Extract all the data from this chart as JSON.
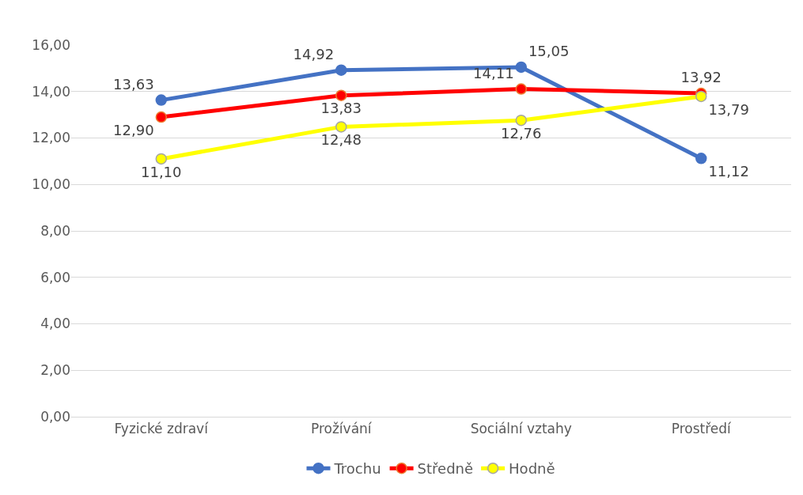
{
  "chart_data": {
    "type": "line",
    "categories": [
      "Fyzické zdraví",
      "Prožívání",
      "Sociální vztahy",
      "Prostředí"
    ],
    "series": [
      {
        "name": "Trochu",
        "color": "#4472c4",
        "values": [
          13.63,
          14.92,
          15.05,
          11.12
        ],
        "value_labels": [
          "13,63",
          "14,92",
          "15,05",
          "11,12"
        ]
      },
      {
        "name": "Středně",
        "color": "#ff0000",
        "values": [
          12.9,
          13.83,
          14.11,
          13.92
        ],
        "value_labels": [
          "12,90",
          "13,83",
          "14,11",
          "13,92"
        ]
      },
      {
        "name": "Hodně",
        "color": "#ffff00",
        "values": [
          11.1,
          12.48,
          12.76,
          13.79
        ],
        "value_labels": [
          "11,10",
          "12,48",
          "12,76",
          "13,79"
        ]
      }
    ],
    "ylim": [
      0,
      16
    ],
    "yticks": [
      {
        "value": 0,
        "label": "0,00"
      },
      {
        "value": 2,
        "label": "2,00"
      },
      {
        "value": 4,
        "label": "4,00"
      },
      {
        "value": 6,
        "label": "6,00"
      },
      {
        "value": 8,
        "label": "8,00"
      },
      {
        "value": 10,
        "label": "10,00"
      },
      {
        "value": 12,
        "label": "12,00"
      },
      {
        "value": 14,
        "label": "14,00"
      },
      {
        "value": 16,
        "label": "16,00"
      }
    ],
    "grid": "y",
    "legend": "bottom",
    "marker": "circle",
    "line_style": "solid"
  }
}
